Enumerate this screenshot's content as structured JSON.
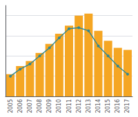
{
  "chart_data": {
    "type": "bar",
    "categories": [
      "2005",
      "2006",
      "2007",
      "2008",
      "2009",
      "2010",
      "2011",
      "2012",
      "2013",
      "2014",
      "2015",
      "2016",
      "2017"
    ],
    "series": [
      {
        "type": "bar",
        "color": "#f5a623",
        "values": [
          22,
          30,
          35,
          43,
          52,
          62,
          70,
          80,
          82,
          65,
          55,
          48,
          46
        ]
      },
      {
        "type": "line",
        "color": "#2e8896",
        "marker": "circle",
        "values": [
          20,
          27,
          32,
          40,
          48,
          58,
          67,
          68,
          65,
          50,
          40,
          30,
          22
        ]
      }
    ],
    "ylim": [
      0,
      90
    ],
    "yticks": [
      20,
      40,
      60,
      80
    ],
    "grid": true,
    "tick_labels": "x"
  }
}
